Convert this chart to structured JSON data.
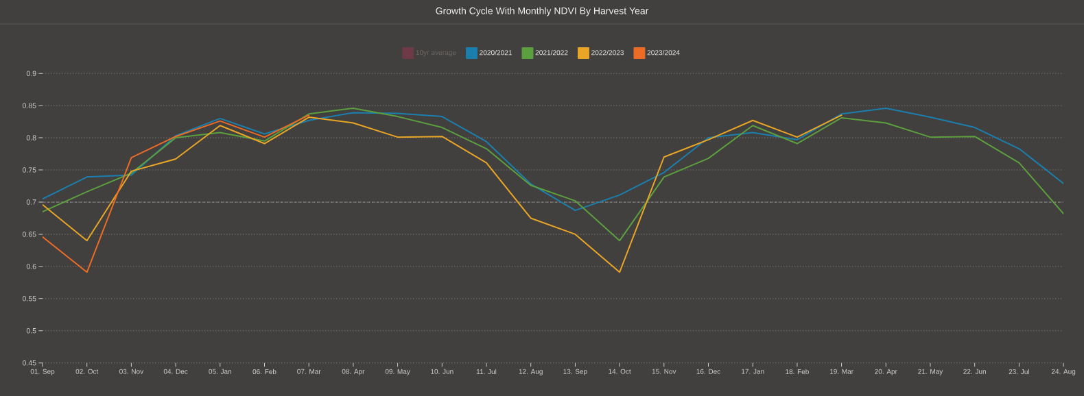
{
  "chart_data": {
    "type": "line",
    "title": "Growth Cycle With Monthly NDVI By Harvest Year",
    "categories": [
      "01. Sep",
      "02. Oct",
      "03. Nov",
      "04. Dec",
      "05. Jan",
      "06. Feb",
      "07. Mar",
      "08. Apr",
      "09. May",
      "10. Jun",
      "11. Jul",
      "12. Aug",
      "13. Sep",
      "14. Oct",
      "15. Nov",
      "16. Dec",
      "17. Jan",
      "18. Feb",
      "19. Mar",
      "20. Apr",
      "21. May",
      "22. Jun",
      "23. Jul",
      "24. Aug"
    ],
    "series": [
      {
        "name": "10yr average",
        "color": "#6e3a47",
        "values": [
          null,
          null,
          null,
          null,
          null,
          null,
          null,
          null,
          null,
          null,
          null,
          null,
          null,
          null,
          null,
          null,
          null,
          null,
          null,
          null,
          null,
          null,
          null,
          null
        ]
      },
      {
        "name": "2020/2021",
        "color": "#1b7fae",
        "values": [
          0.705,
          0.739,
          0.742,
          0.803,
          0.83,
          0.806,
          0.827,
          0.839,
          0.838,
          0.833,
          0.794,
          0.728,
          0.687,
          0.711,
          0.746,
          0.8,
          0.808,
          0.797,
          0.837,
          0.846,
          0.832,
          0.816,
          0.783,
          0.729
        ]
      },
      {
        "name": "2021/2022",
        "color": "#5c9f3e",
        "values": [
          0.685,
          0.716,
          0.745,
          0.8,
          0.808,
          0.795,
          0.837,
          0.846,
          0.833,
          0.816,
          0.783,
          0.726,
          0.702,
          0.64,
          0.739,
          0.768,
          0.819,
          0.791,
          0.831,
          0.823,
          0.801,
          0.802,
          0.761,
          0.682
        ]
      },
      {
        "name": "2022/2023",
        "color": "#e9a626",
        "values": [
          0.696,
          0.64,
          0.748,
          0.767,
          0.819,
          0.791,
          0.832,
          0.823,
          0.801,
          0.802,
          0.761,
          0.675,
          0.65,
          0.591,
          0.77,
          0.797,
          0.827,
          0.801,
          0.835,
          null,
          null,
          null,
          null,
          null
        ]
      },
      {
        "name": "2023/2024",
        "color": "#ec6b25",
        "values": [
          0.646,
          0.591,
          0.769,
          0.802,
          0.826,
          0.801,
          0.835,
          null,
          null,
          null,
          null,
          null,
          null,
          null,
          null,
          null,
          null,
          null,
          null,
          null,
          null,
          null,
          null,
          null
        ]
      }
    ],
    "ylim": [
      0.45,
      0.9
    ],
    "yticks": [
      0.45,
      0.5,
      0.55,
      0.6,
      0.65,
      0.7,
      0.75,
      0.8,
      0.85,
      0.9
    ],
    "grid": "y",
    "legend": "top",
    "marker": "none",
    "line_style": "solid",
    "ref_lines": [
      {
        "axis": "y",
        "value": 0.7,
        "color": "#c4c2c0",
        "line_style": "dashed"
      }
    ]
  }
}
